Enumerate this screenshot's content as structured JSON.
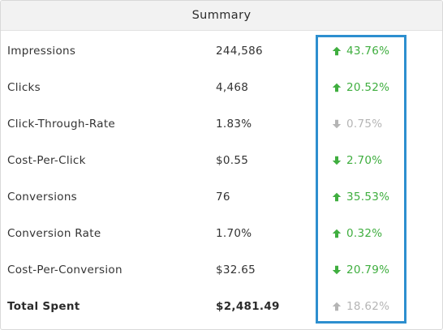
{
  "summary": {
    "title": "Summary",
    "rows": [
      {
        "label": "Impressions",
        "value": "244,586",
        "change": "43.76%",
        "direction": "up",
        "color": "#3fae3f"
      },
      {
        "label": "Clicks",
        "value": "4,468",
        "change": "20.52%",
        "direction": "up",
        "color": "#3fae3f"
      },
      {
        "label": "Click-Through-Rate",
        "value": "1.83%",
        "change": "0.75%",
        "direction": "down",
        "color": "#b5b5b5"
      },
      {
        "label": "Cost-Per-Click",
        "value": "$0.55",
        "change": "2.70%",
        "direction": "down",
        "color": "#3fae3f"
      },
      {
        "label": "Conversions",
        "value": "76",
        "change": "35.53%",
        "direction": "up",
        "color": "#3fae3f"
      },
      {
        "label": "Conversion Rate",
        "value": "1.70%",
        "change": "0.32%",
        "direction": "up",
        "color": "#3fae3f"
      },
      {
        "label": "Cost-Per-Conversion",
        "value": "$32.65",
        "change": "20.79%",
        "direction": "down",
        "color": "#3fae3f"
      },
      {
        "label": "Total Spent",
        "value": "$2,481.49",
        "change": "18.62%",
        "direction": "up",
        "color": "#b5b5b5"
      }
    ]
  },
  "colors": {
    "positive": "#3fae3f",
    "neutral": "#b5b5b5",
    "highlight": "#2d8fcf",
    "header_bg": "#f2f2f2"
  },
  "icons": {
    "up": "arrow-up-icon",
    "down": "arrow-down-icon"
  }
}
